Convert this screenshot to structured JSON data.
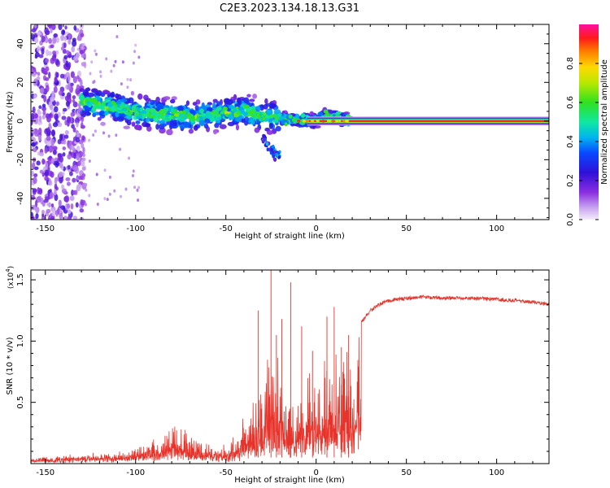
{
  "title": "C2E3.2023.134.18.13.G31",
  "chart_data": [
    {
      "type": "heatmap",
      "xlabel": "Height of straight line (km)",
      "ylabel": "Frequency (Hz)",
      "xlim": [
        -158,
        129
      ],
      "ylim": [
        -51,
        50
      ],
      "x_ticks": [
        -150,
        -100,
        -50,
        0,
        50,
        100
      ],
      "y_ticks": [
        -40,
        -20,
        0,
        20,
        40
      ],
      "colorbar": {
        "label": "Normalized spectral amplitude",
        "range": [
          0.0,
          1.0
        ],
        "ticks": [
          0.0,
          0.2,
          0.4,
          0.6,
          0.8
        ],
        "tick_labels": [
          "0.0",
          "0.2",
          "0.4",
          "0.6",
          "0.8"
        ],
        "colormap": "rainbow (white-violet-blue-cyan-green-yellow-orange-red-magenta)"
      },
      "features": [
        {
          "name": "scattered noise",
          "x_range": [
            -158,
            -128
          ],
          "y_range": [
            -51,
            50
          ],
          "amplitude": 0.2
        },
        {
          "name": "dispersed doppler band",
          "x_range": [
            -130,
            20
          ],
          "center_hz": [
            [
              -130,
              10
            ],
            [
              -100,
              5
            ],
            [
              -70,
              2
            ],
            [
              -40,
              5
            ],
            [
              -20,
              1
            ],
            [
              0,
              0
            ],
            [
              5,
              3
            ],
            [
              20,
              0
            ]
          ],
          "spread_hz": 6,
          "amplitude": 0.5
        },
        {
          "name": "side branch",
          "x_range": [
            -30,
            -20
          ],
          "center_hz": [
            [
              -30,
              -8
            ],
            [
              -22,
              -18
            ]
          ],
          "amplitude": 0.3
        },
        {
          "name": "steady carrier line",
          "x_range": [
            0,
            129
          ],
          "frequency_hz": 0,
          "amplitude": 1.0
        }
      ]
    },
    {
      "type": "line",
      "xlabel": "Height of straight line (km)",
      "ylabel": "SNR (10 * v/v)",
      "y_multiplier": "(x10^4)",
      "xlim": [
        -158,
        129
      ],
      "ylim": [
        0,
        1.58
      ],
      "x_ticks": [
        -150,
        -100,
        -50,
        0,
        50,
        100
      ],
      "y_ticks": [
        0.5,
        1.0,
        1.5
      ],
      "y_tick_labels": [
        "0.5",
        "1.0",
        "1.5"
      ],
      "series_color": "#e8332a",
      "series": [
        {
          "x": [
            -158,
            -140,
            -120,
            -105,
            -95,
            -85,
            -78,
            -70,
            -62,
            -55,
            -45,
            -38,
            -32,
            -28,
            -24,
            -20,
            -15,
            -10,
            -5,
            0,
            5,
            10,
            15,
            20,
            25,
            30,
            35,
            40,
            50,
            60,
            70,
            80,
            90,
            100,
            110,
            120,
            129
          ],
          "y": [
            0.03,
            0.04,
            0.07,
            0.08,
            0.12,
            0.25,
            0.35,
            0.28,
            0.18,
            0.12,
            0.22,
            0.45,
            0.65,
            0.8,
            0.95,
            0.85,
            0.5,
            0.5,
            0.75,
            0.7,
            0.85,
            0.8,
            0.95,
            1.0,
            1.15,
            1.25,
            1.3,
            1.33,
            1.35,
            1.36,
            1.35,
            1.35,
            1.35,
            1.34,
            1.33,
            1.32,
            1.3
          ]
        }
      ]
    }
  ]
}
